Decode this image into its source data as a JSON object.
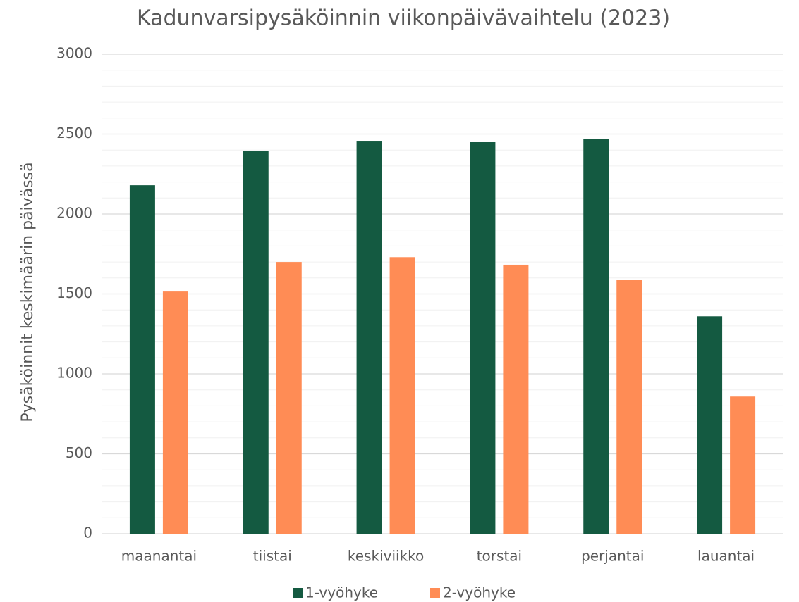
{
  "chart_data": {
    "type": "bar",
    "title": "Kadunvarsipysäköinnin viikonpäivävaihtelu (2023)",
    "y_label": "Pysäköinnit keskimäärin päivässä",
    "categories": [
      "maanantai",
      "tiistai",
      "keskiviikko",
      "torstai",
      "perjantai",
      "lauantai"
    ],
    "series": [
      {
        "name": "1-vyöhyke",
        "color": "#145a41",
        "values": [
          2180,
          2395,
          2458,
          2450,
          2470,
          1360
        ]
      },
      {
        "name": "2-vyöhyke",
        "color": "#ff8c55",
        "values": [
          1515,
          1700,
          1730,
          1683,
          1590,
          858
        ]
      }
    ],
    "ylim": [
      0,
      3000
    ],
    "yticks": [
      0,
      500,
      1000,
      1500,
      2000,
      2500,
      3000
    ],
    "minor_yticks": [
      100,
      200,
      300,
      400,
      600,
      700,
      800,
      900,
      1100,
      1200,
      1300,
      1400,
      1600,
      1700,
      1800,
      1900,
      2100,
      2200,
      2300,
      2400,
      2600,
      2700,
      2800,
      2900
    ],
    "grid": true,
    "legend": "bottom"
  }
}
